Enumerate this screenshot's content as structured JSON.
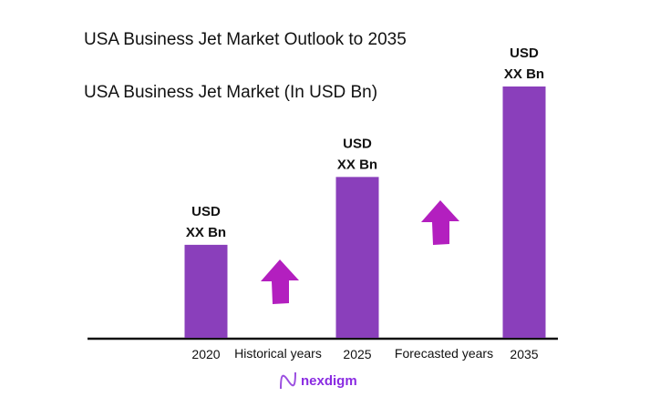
{
  "chart_data": {
    "type": "bar",
    "title": "USA Business Jet Market Outlook to 2035",
    "subtitle": "USA Business Jet Market (In USD Bn)",
    "categories": [
      "2020",
      "2025",
      "2035"
    ],
    "values": [
      37,
      64,
      100
    ],
    "value_note_unit": "relative bar height (2035 = 100)",
    "data_labels": [
      [
        "USD",
        "XX Bn"
      ],
      [
        "USD",
        "XX Bn"
      ],
      [
        "USD",
        "XX Bn"
      ]
    ],
    "period_labels": [
      "Historical years",
      "Forecasted years"
    ],
    "ylim": [
      0,
      100
    ],
    "grid": false,
    "bar_color": "#8a3fbb",
    "arrow_color": "#b31fbf",
    "arrow_icon": "up-arrow"
  },
  "brand": {
    "name": "nexdigm",
    "color": "#8a2be2"
  }
}
